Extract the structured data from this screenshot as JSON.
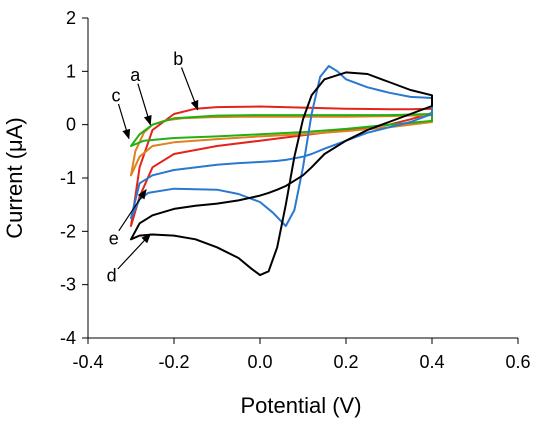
{
  "chart_data": {
    "type": "line",
    "title": "",
    "xlabel": "Potential (V)",
    "ylabel": "Current (μA)",
    "xlim": [
      -0.4,
      0.6
    ],
    "ylim": [
      -4,
      2
    ],
    "xticks": [
      -0.4,
      -0.2,
      0,
      0.2,
      0.4,
      0.6
    ],
    "xtick_labels": [
      "-0.4",
      "-0.2",
      "0.0",
      "0.2",
      "0.4",
      "0.6"
    ],
    "yticks": [
      -4,
      -3,
      -2,
      -1,
      0,
      1,
      2
    ],
    "ytick_labels": [
      "-4",
      "-3",
      "-2",
      "-1",
      "0",
      "1",
      "2"
    ],
    "grid": false,
    "series": [
      {
        "color": "#e4241c",
        "x": [
          -0.3,
          -0.28,
          -0.25,
          -0.2,
          -0.15,
          -0.1,
          0.0,
          0.1,
          0.2,
          0.3,
          0.35,
          0.4,
          0.4,
          0.35,
          0.3,
          0.2,
          0.1,
          0.0,
          -0.1,
          -0.2,
          -0.25,
          -0.28,
          -0.3
        ],
        "y": [
          -1.9,
          -0.8,
          -0.1,
          0.2,
          0.3,
          0.33,
          0.34,
          0.32,
          0.3,
          0.29,
          0.29,
          0.3,
          0.22,
          0.1,
          0.0,
          -0.1,
          -0.2,
          -0.3,
          -0.4,
          -0.55,
          -0.8,
          -1.35,
          -1.9
        ]
      },
      {
        "color": "#e0801e",
        "x": [
          -0.3,
          -0.29,
          -0.27,
          -0.25,
          -0.22,
          -0.18,
          -0.12,
          -0.05,
          0.0,
          0.1,
          0.2,
          0.3,
          0.4,
          0.4,
          0.3,
          0.2,
          0.1,
          0.0,
          -0.1,
          -0.2,
          -0.25,
          -0.28,
          -0.3
        ],
        "y": [
          -0.95,
          -0.5,
          -0.15,
          0.0,
          0.08,
          0.12,
          0.14,
          0.15,
          0.15,
          0.15,
          0.15,
          0.16,
          0.18,
          0.05,
          -0.05,
          -0.12,
          -0.18,
          -0.22,
          -0.27,
          -0.33,
          -0.4,
          -0.6,
          -0.95
        ]
      },
      {
        "color": "#22b014",
        "x": [
          -0.3,
          -0.28,
          -0.25,
          -0.2,
          -0.1,
          0.0,
          0.1,
          0.2,
          0.3,
          0.4,
          0.4,
          0.3,
          0.2,
          0.1,
          0.0,
          -0.1,
          -0.2,
          -0.27,
          -0.3
        ],
        "y": [
          -0.4,
          -0.18,
          0.0,
          0.12,
          0.17,
          0.18,
          0.18,
          0.18,
          0.18,
          0.2,
          0.07,
          0.0,
          -0.08,
          -0.14,
          -0.18,
          -0.22,
          -0.25,
          -0.3,
          -0.4
        ]
      },
      {
        "color": "#2a78d0",
        "x": [
          -0.3,
          -0.28,
          -0.26,
          -0.2,
          -0.1,
          -0.05,
          0.0,
          0.03,
          0.06,
          0.08,
          0.1,
          0.12,
          0.14,
          0.16,
          0.18,
          0.2,
          0.25,
          0.3,
          0.35,
          0.4,
          0.4,
          0.35,
          0.3,
          0.25,
          0.2,
          0.15,
          0.12,
          0.1,
          0.08,
          0.06,
          0.04,
          0.0,
          -0.05,
          -0.1,
          -0.2,
          -0.25,
          -0.28,
          -0.3
        ],
        "y": [
          -1.75,
          -1.4,
          -1.28,
          -1.2,
          -1.22,
          -1.3,
          -1.45,
          -1.65,
          -1.9,
          -1.6,
          -0.8,
          0.2,
          0.9,
          1.1,
          1.0,
          0.85,
          0.7,
          0.6,
          0.52,
          0.5,
          0.2,
          0.05,
          -0.05,
          -0.15,
          -0.3,
          -0.45,
          -0.55,
          -0.6,
          -0.63,
          -0.66,
          -0.68,
          -0.7,
          -0.72,
          -0.75,
          -0.85,
          -0.95,
          -1.1,
          -1.75
        ]
      },
      {
        "color": "#000000",
        "x": [
          -0.3,
          -0.28,
          -0.25,
          -0.2,
          -0.15,
          -0.1,
          -0.05,
          -0.02,
          0.0,
          0.02,
          0.04,
          0.06,
          0.08,
          0.1,
          0.12,
          0.15,
          0.2,
          0.25,
          0.3,
          0.35,
          0.4,
          0.4,
          0.35,
          0.3,
          0.25,
          0.2,
          0.15,
          0.12,
          0.1,
          0.08,
          0.06,
          0.04,
          0.02,
          0.0,
          -0.05,
          -0.1,
          -0.15,
          -0.2,
          -0.25,
          -0.28,
          -0.3
        ],
        "y": [
          -2.15,
          -2.08,
          -2.06,
          -2.08,
          -2.15,
          -2.3,
          -2.5,
          -2.7,
          -2.82,
          -2.75,
          -2.3,
          -1.5,
          -0.6,
          0.1,
          0.55,
          0.85,
          0.98,
          0.95,
          0.8,
          0.65,
          0.55,
          0.35,
          0.2,
          0.05,
          -0.1,
          -0.3,
          -0.55,
          -0.8,
          -0.95,
          -1.05,
          -1.15,
          -1.22,
          -1.28,
          -1.33,
          -1.42,
          -1.48,
          -1.52,
          -1.58,
          -1.7,
          -1.85,
          -2.15
        ]
      }
    ],
    "annotations": [
      {
        "text": "a",
        "x": -0.29,
        "y": 0.93,
        "tip_x": -0.255,
        "tip_y": 0.0
      },
      {
        "text": "b",
        "x": -0.19,
        "y": 1.23,
        "tip_x": -0.145,
        "tip_y": 0.28
      },
      {
        "text": "c",
        "x": -0.335,
        "y": 0.55,
        "tip_x": -0.305,
        "tip_y": -0.26
      },
      {
        "text": "d",
        "x": -0.345,
        "y": -2.83,
        "tip_x": -0.255,
        "tip_y": -2.05
      },
      {
        "text": "e",
        "x": -0.34,
        "y": -2.13,
        "tip_x": -0.265,
        "tip_y": -1.22
      }
    ]
  }
}
